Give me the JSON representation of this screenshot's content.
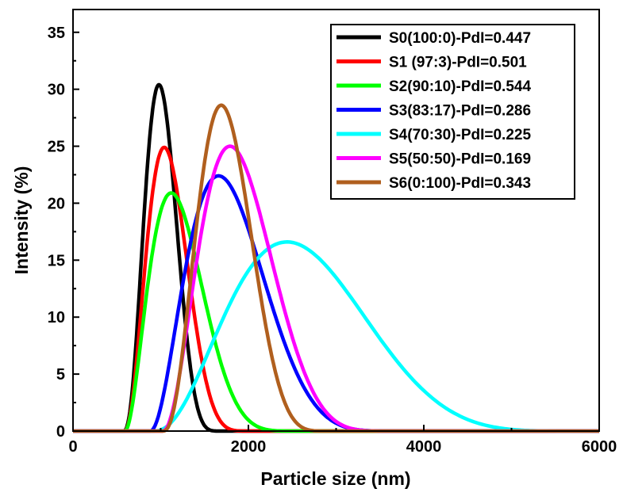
{
  "chart_data": {
    "type": "line",
    "title": "",
    "xlabel": "Particle size (nm)",
    "ylabel": "Intensity (%)",
    "xlim": [
      0,
      6000
    ],
    "ylim": [
      0,
      37
    ],
    "xticks": [
      0,
      2000,
      4000,
      6000
    ],
    "yticks": [
      0,
      5,
      10,
      15,
      20,
      25,
      30,
      35
    ],
    "grid": false,
    "legend_position": "top-right",
    "series": [
      {
        "name": "S0(100:0)-PdI=0.447",
        "color": "#000000",
        "min": 570,
        "peak_x": 980,
        "peak_y": 30.4,
        "max": 1700
      },
      {
        "name": "S1 (97:3)-PdI=0.501",
        "color": "#ff0000",
        "min": 580,
        "peak_x": 1040,
        "peak_y": 24.9,
        "max": 2050
      },
      {
        "name": "S2(90:10)-PdI=0.544",
        "color": "#00ff00",
        "min": 590,
        "peak_x": 1120,
        "peak_y": 20.9,
        "max": 2650
      },
      {
        "name": "S3(83:17)-PdI=0.286",
        "color": "#0000ff",
        "min": 880,
        "peak_x": 1660,
        "peak_y": 22.4,
        "max": 3850
      },
      {
        "name": "S4(70:30)-PdI=0.225",
        "color": "#00ffff",
        "min": 920,
        "peak_x": 2440,
        "peak_y": 16.6,
        "max": 6000
      },
      {
        "name": "S5(50:50)-PdI=0.169",
        "color": "#ff00ff",
        "min": 1020,
        "peak_x": 1790,
        "peak_y": 25.0,
        "max": 3750
      },
      {
        "name": "S6(0:100)-PdI=0.343",
        "color": "#b05f1e",
        "min": 1020,
        "peak_x": 1690,
        "peak_y": 28.6,
        "max": 2950
      }
    ]
  }
}
